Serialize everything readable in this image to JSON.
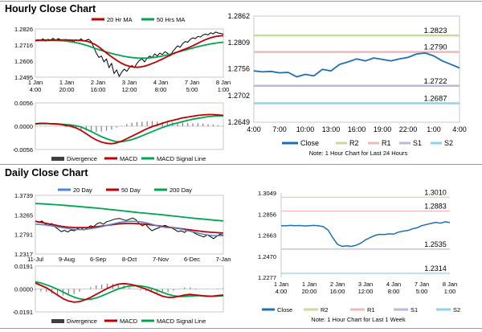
{
  "page": {
    "hourly_title": "Hourly Close Chart",
    "daily_title": "Daily Close Chart"
  },
  "colors": {
    "price": "#000000",
    "ma_short": "#c00000",
    "ma_long": "#00a550",
    "close": "#1f6fb5",
    "r2": "#c6dd9a",
    "r1": "#f2b8b8",
    "s1": "#c3b4dc",
    "s2": "#8fd3ea",
    "day20": "#4a86c8",
    "divergence": "#808080"
  },
  "chart_data": [
    {
      "id": "hourly-price",
      "type": "line",
      "legend": [
        "20 Hr MA",
        "50 Hrs MA"
      ],
      "legend_placement": "top",
      "yticks": [
        "1.2826",
        "1.2716",
        "1.2606",
        "1.2495"
      ],
      "xticks": [
        "1 Jan\n4:00",
        "1 Jan\n20:00",
        "2 Jan\n16:00",
        "3 Jan\n12:00",
        "4 Jan\n8:00",
        "7 Jan\n5:00",
        "8 Jan\n1:00"
      ],
      "ylim": [
        1.2495,
        1.2826
      ],
      "price": [
        1.2745,
        1.2752,
        1.2748,
        1.2758,
        1.2742,
        1.2755,
        1.275,
        1.2762,
        1.2748,
        1.276,
        1.2752,
        1.2745,
        1.2755,
        1.274,
        1.275,
        1.2738,
        1.2752,
        1.2745,
        1.2758,
        1.2742,
        1.2748,
        1.2755,
        1.274,
        1.27,
        1.266,
        1.263,
        1.264,
        1.26,
        1.262,
        1.256,
        1.259,
        1.252,
        1.2545,
        1.25,
        1.253,
        1.255,
        1.2535,
        1.256,
        1.2575,
        1.256,
        1.259,
        1.261,
        1.262,
        1.26,
        1.2625,
        1.264,
        1.263,
        1.2655,
        1.264,
        1.266,
        1.265,
        1.267,
        1.266,
        1.264,
        1.267,
        1.269,
        1.271,
        1.27,
        1.2725,
        1.274,
        1.2735,
        1.2755,
        1.2765,
        1.276,
        1.2775,
        1.277,
        1.2785,
        1.279,
        1.2785,
        1.28,
        1.2792,
        1.2805,
        1.2798,
        1.2795,
        1.279
      ],
      "ma_short": [
        1.2748,
        1.2749,
        1.2749,
        1.275,
        1.275,
        1.275,
        1.275,
        1.2751,
        1.2751,
        1.275,
        1.2749,
        1.2748,
        1.2747,
        1.2745,
        1.274,
        1.273,
        1.2718,
        1.27,
        1.268,
        1.266,
        1.264,
        1.2622,
        1.2605,
        1.259,
        1.2578,
        1.257,
        1.2565,
        1.2563,
        1.2565,
        1.257,
        1.2578,
        1.2588,
        1.2598,
        1.261,
        1.2622,
        1.2635,
        1.2648,
        1.266,
        1.267,
        1.268,
        1.269,
        1.27,
        1.2712,
        1.2725,
        1.2738,
        1.275,
        1.276,
        1.2768,
        1.2774,
        1.2778,
        1.278
      ],
      "ma_long": [
        1.2745,
        1.2746,
        1.2746,
        1.2747,
        1.2747,
        1.2747,
        1.2746,
        1.2745,
        1.2743,
        1.274,
        1.2736,
        1.2731,
        1.2725,
        1.2718,
        1.271,
        1.2701,
        1.2692,
        1.2683,
        1.2675,
        1.2667,
        1.266,
        1.2653,
        1.2647,
        1.2641,
        1.2636,
        1.2632,
        1.2629,
        1.2627,
        1.2626,
        1.2626,
        1.2627,
        1.2629,
        1.2632,
        1.2636,
        1.2641,
        1.2647,
        1.2654,
        1.2661,
        1.2668,
        1.2675,
        1.2682,
        1.2689,
        1.2696,
        1.2703,
        1.2709,
        1.2715,
        1.272,
        1.2725,
        1.2729,
        1.2732,
        1.2734
      ]
    },
    {
      "id": "hourly-macd",
      "type": "line",
      "legend": [
        "Divergence",
        "MACD",
        "MACD Signal Line"
      ],
      "legend_placement": "bottom",
      "yticks": [
        "0.0056",
        "0.0000",
        "-0.0056"
      ],
      "ylim": [
        -0.0056,
        0.0056
      ],
      "macd": [
        0.0006,
        0.0007,
        0.0007,
        0.0006,
        0.0005,
        0.0004,
        0.0002,
        0.0,
        -0.0004,
        -0.001,
        -0.0018,
        -0.0026,
        -0.0033,
        -0.0038,
        -0.0041,
        -0.0042,
        -0.004,
        -0.0036,
        -0.003,
        -0.0024,
        -0.0018,
        -0.0012,
        -0.0006,
        -0.0001,
        0.0003,
        0.0007,
        0.0011,
        0.0014,
        0.0017,
        0.002,
        0.0022,
        0.0024,
        0.0026,
        0.0027,
        0.0028,
        0.0028,
        0.0027,
        0.0026
      ],
      "signal": [
        0.0005,
        0.0006,
        0.0006,
        0.0006,
        0.0006,
        0.0005,
        0.0004,
        0.0003,
        0.0001,
        -0.0002,
        -0.0007,
        -0.0013,
        -0.0019,
        -0.0025,
        -0.003,
        -0.0034,
        -0.0037,
        -0.0037,
        -0.0035,
        -0.0032,
        -0.0028,
        -0.0023,
        -0.0018,
        -0.0013,
        -0.0008,
        -0.0003,
        0.0001,
        0.0005,
        0.0008,
        0.0011,
        0.0014,
        0.0017,
        0.0019,
        0.0021,
        0.0023,
        0.0024,
        0.0025,
        0.0025
      ]
    },
    {
      "id": "hourly-levels",
      "type": "line",
      "legend": [
        "Close",
        "R2",
        "R1",
        "S1",
        "S2"
      ],
      "legend_placement": "bottom",
      "yticks": [
        "1.2862",
        "1.2809",
        "1.2756",
        "1.2702",
        "1.2649"
      ],
      "xticks": [
        "4:00",
        "7:00",
        "10:00",
        "13:00",
        "16:00",
        "19:00",
        "22:00",
        "1:00",
        "4:00"
      ],
      "ylim": [
        1.2649,
        1.2862
      ],
      "close": [
        1.2752,
        1.275,
        1.2751,
        1.2748,
        1.2749,
        1.274,
        1.2745,
        1.2742,
        1.2755,
        1.2752,
        1.2765,
        1.277,
        1.2776,
        1.2772,
        1.2778,
        1.2775,
        1.2772,
        1.2776,
        1.2779,
        1.2786,
        1.2788,
        1.2782,
        1.2772,
        1.2765,
        1.2758
      ],
      "levels": {
        "R2": 1.2823,
        "R1": 1.279,
        "S1": 1.2722,
        "S2": 1.2687
      },
      "level_labels": {
        "R2": "1.2823",
        "R1": "1.2790",
        "S1": "1.2722",
        "S2": "1.2687"
      },
      "note": "Note: 1 Hour Chart for Last 24 Hours"
    },
    {
      "id": "daily-price",
      "type": "line",
      "legend": [
        "20 Day",
        "50 Day",
        "200 Day"
      ],
      "legend_placement": "top",
      "yticks": [
        "1.3739",
        "1.3265",
        "1.2791",
        "1.2317"
      ],
      "xticks": [
        "11-Jul",
        "9-Aug",
        "6-Sep",
        "8-Oct",
        "7-Nov",
        "6-Dec",
        "7-Jan"
      ],
      "ylim": [
        1.2317,
        1.3739
      ],
      "price": [
        1.311,
        1.308,
        1.312,
        1.305,
        1.3,
        1.306,
        1.298,
        1.292,
        1.286,
        1.289,
        1.285,
        1.29,
        1.288,
        1.293,
        1.296,
        1.29,
        1.295,
        1.3,
        1.298,
        1.305,
        1.308,
        1.304,
        1.31,
        1.312,
        1.315,
        1.317,
        1.318,
        1.315,
        1.313,
        1.316,
        1.319,
        1.315,
        1.306,
        1.3,
        1.304,
        1.295,
        1.288,
        1.292,
        1.295,
        1.299,
        1.301,
        1.298,
        1.295,
        1.291,
        1.286,
        1.288,
        1.284,
        1.29,
        1.287,
        1.283,
        1.279,
        1.276,
        1.273,
        1.278,
        1.274,
        1.269,
        1.275,
        1.28,
        1.277
      ],
      "day20": [
        1.304,
        1.303,
        1.302,
        1.3,
        1.298,
        1.296,
        1.294,
        1.292,
        1.291,
        1.291,
        1.292,
        1.294,
        1.296,
        1.299,
        1.302,
        1.305,
        1.308,
        1.31,
        1.311,
        1.311,
        1.31,
        1.308,
        1.305,
        1.301,
        1.298,
        1.296,
        1.295,
        1.294,
        1.292,
        1.289,
        1.286,
        1.283,
        1.28,
        1.278,
        1.2765,
        1.276,
        1.2765
      ],
      "day50": [
        1.311,
        1.308,
        1.305,
        1.302,
        1.299,
        1.297,
        1.296,
        1.2955,
        1.296,
        1.297,
        1.299,
        1.301,
        1.303,
        1.305,
        1.306,
        1.306,
        1.305,
        1.304,
        1.302,
        1.3,
        1.298,
        1.296,
        1.294,
        1.292,
        1.29,
        1.288,
        1.286,
        1.2845,
        1.2835,
        1.2825
      ],
      "day200": [
        1.354,
        1.353,
        1.3515,
        1.35,
        1.348,
        1.346,
        1.344,
        1.342,
        1.3395,
        1.337,
        1.3345,
        1.332,
        1.33,
        1.328,
        1.3255,
        1.323,
        1.3205,
        1.318,
        1.316,
        1.314,
        1.312
      ]
    },
    {
      "id": "daily-macd",
      "type": "line",
      "legend": [
        "Divergence",
        "MACD",
        "MACD Signal Line"
      ],
      "legend_placement": "bottom",
      "yticks": [
        "0.0191",
        "0.0000",
        "-0.0191"
      ],
      "ylim": [
        -0.0191,
        0.0191
      ],
      "macd": [
        0.005,
        0.003,
        0.001,
        -0.002,
        -0.005,
        -0.008,
        -0.01,
        -0.011,
        -0.0105,
        -0.009,
        -0.007,
        -0.0045,
        -0.002,
        0.0005,
        0.0025,
        0.004,
        0.0045,
        0.004,
        0.003,
        0.0015,
        0.0,
        -0.002,
        -0.004,
        -0.006,
        -0.007,
        -0.007,
        -0.006,
        -0.005,
        -0.0045,
        -0.005,
        -0.0055,
        -0.006,
        -0.006,
        -0.0055,
        -0.005
      ],
      "signal": [
        0.006,
        0.005,
        0.0035,
        0.0018,
        -0.0002,
        -0.0025,
        -0.0048,
        -0.0068,
        -0.0082,
        -0.0088,
        -0.0085,
        -0.0075,
        -0.0058,
        -0.0038,
        -0.0018,
        0.0,
        0.0015,
        0.0025,
        0.0028,
        0.0026,
        0.0018,
        0.0006,
        -0.001,
        -0.0028,
        -0.0044,
        -0.0056,
        -0.0062,
        -0.0062,
        -0.0058,
        -0.0056,
        -0.0056,
        -0.0058,
        -0.006,
        -0.0059,
        -0.0057
      ]
    },
    {
      "id": "daily-levels",
      "type": "line",
      "legend": [
        "Close",
        "R2",
        "R1",
        "S1",
        "S2"
      ],
      "legend_placement": "bottom",
      "yticks": [
        "1.3049",
        "1.2856",
        "1.2663",
        "1.2470",
        "1.2277"
      ],
      "xticks": [
        "1 Jan\n4:00",
        "1 Jan\n20:00",
        "2 Jan\n16:00",
        "3 Jan\n12:00",
        "4 Jan\n8:00",
        "7 Jan\n5:00",
        "8 Jan\n1:00"
      ],
      "ylim": [
        1.2277,
        1.3049
      ],
      "close": [
        1.275,
        1.2748,
        1.2752,
        1.2749,
        1.2751,
        1.2747,
        1.275,
        1.2752,
        1.2748,
        1.274,
        1.271,
        1.264,
        1.258,
        1.256,
        1.2565,
        1.256,
        1.257,
        1.259,
        1.262,
        1.264,
        1.266,
        1.267,
        1.2668,
        1.2675,
        1.2672,
        1.269,
        1.27,
        1.2705,
        1.272,
        1.273,
        1.275,
        1.276,
        1.277,
        1.278,
        1.2772,
        1.2785,
        1.2778
      ],
      "levels": {
        "R2": 1.301,
        "R1": 1.2883,
        "S1": 1.2535,
        "S2": 1.2314
      },
      "level_labels": {
        "R2": "1.3010",
        "R1": "1.2883",
        "S1": "1.2535",
        "S2": "1.2314"
      },
      "note": "Note: 1 Hour Chart for Last 1 Week"
    }
  ]
}
